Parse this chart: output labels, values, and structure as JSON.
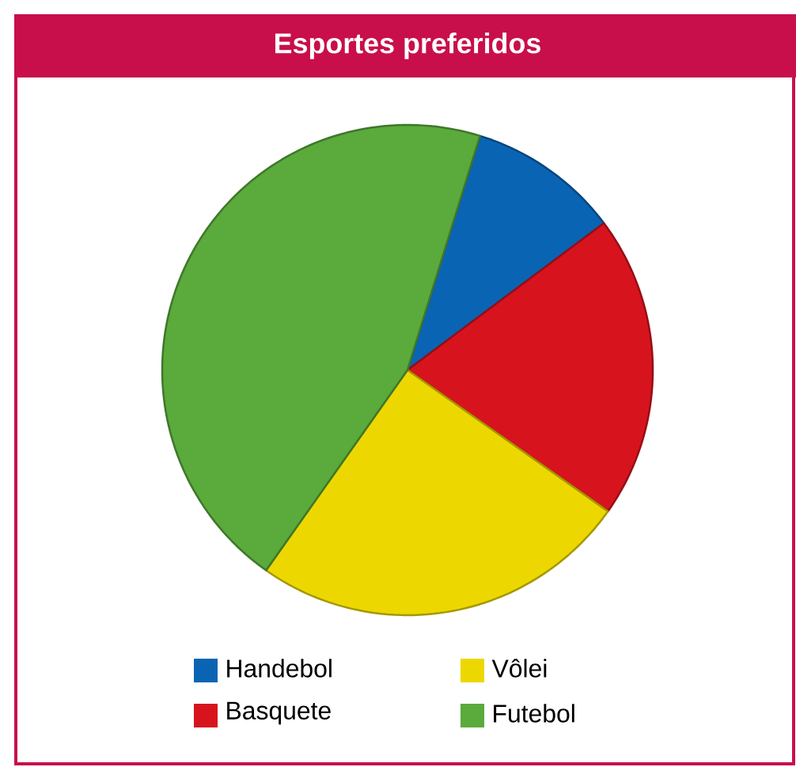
{
  "chart_data": {
    "type": "pie",
    "title": "Esportes preferidos",
    "categories": [
      "Handebol",
      "Basquete",
      "Vôlei",
      "Futebol"
    ],
    "values": [
      10,
      20,
      25,
      45
    ],
    "colors": [
      "#0a64b4",
      "#d7141e",
      "#ecd800",
      "#5aaa3c"
    ],
    "legend": "bottom"
  }
}
